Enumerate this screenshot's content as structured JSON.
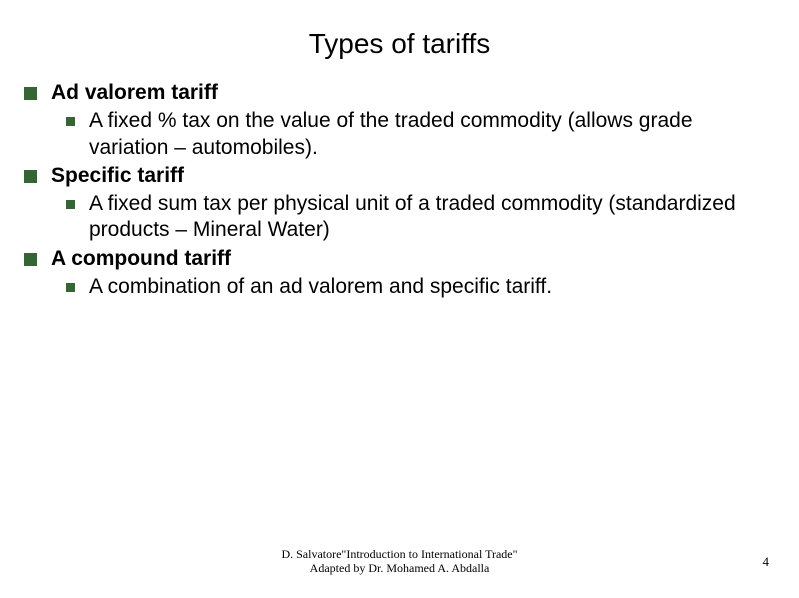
{
  "title": "Types of tariffs",
  "bullets": {
    "b1": {
      "label": "Ad valorem tariff"
    },
    "b1_1": {
      "text": "A fixed % tax on the value of the traded commodity (allows grade variation – automobiles)."
    },
    "b2": {
      "label": "Specific tariff"
    },
    "b2_1": {
      "text": "A fixed sum tax per physical unit of a traded commodity (standardized products – Mineral Water)"
    },
    "b3": {
      "label": "A compound tariff"
    },
    "b3_1": {
      "text": "A combination of an ad valorem and specific tariff."
    }
  },
  "footer": {
    "line1": "D. Salvatore\"Introduction to International Trade\"",
    "line2": "Adapted by Dr. Mohamed A. Abdalla"
  },
  "page_number": "4",
  "colors": {
    "bullet": "#336633",
    "background": "#ffffff",
    "text": "#000000"
  }
}
